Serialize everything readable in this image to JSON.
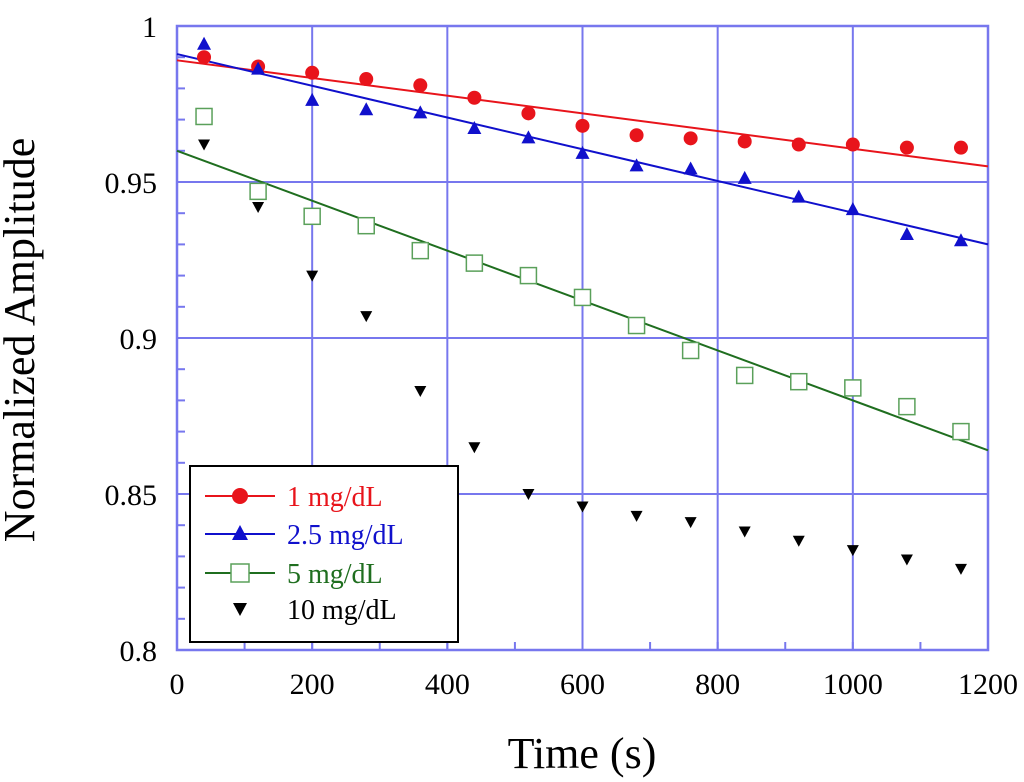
{
  "chart_data": {
    "type": "scatter",
    "title": "",
    "xlabel": "Time (s)",
    "ylabel": "Normalized Amplitude",
    "xlim": [
      0,
      1200
    ],
    "ylim": [
      0.8,
      1.0
    ],
    "grid": true,
    "legend_position": "bottom-left",
    "x_ticks": [
      {
        "value": 0,
        "label": "0"
      },
      {
        "value": 200,
        "label": "200"
      },
      {
        "value": 400,
        "label": "400"
      },
      {
        "value": 600,
        "label": "600"
      },
      {
        "value": 800,
        "label": "800"
      },
      {
        "value": 1000,
        "label": "1000"
      },
      {
        "value": 1200,
        "label": "1200"
      }
    ],
    "y_ticks": [
      {
        "value": 0.8,
        "label": "0.8"
      },
      {
        "value": 0.85,
        "label": "0.85"
      },
      {
        "value": 0.9,
        "label": "0.9"
      },
      {
        "value": 0.95,
        "label": "0.95"
      },
      {
        "value": 1.0,
        "label": "1"
      }
    ],
    "x": [
      40,
      120,
      200,
      280,
      360,
      440,
      520,
      600,
      680,
      760,
      840,
      920,
      1000,
      1080,
      1160
    ],
    "series": [
      {
        "name": "1 mg/dL",
        "label": "1 mg/dL",
        "color": "#e8141b",
        "marker": "circle",
        "filled": true,
        "values": [
          0.99,
          0.987,
          0.985,
          0.983,
          0.981,
          0.977,
          0.972,
          0.968,
          0.965,
          0.964,
          0.963,
          0.962,
          0.962,
          0.961,
          0.961
        ],
        "fit": {
          "x": [
            0,
            1200
          ],
          "y": [
            0.989,
            0.955
          ]
        }
      },
      {
        "name": "2.5 mg/dL",
        "label": "2.5 mg/dL",
        "color": "#1010cc",
        "marker": "triangle-up",
        "filled": true,
        "values": [
          0.994,
          0.986,
          0.976,
          0.973,
          0.972,
          0.967,
          0.964,
          0.959,
          0.955,
          0.954,
          0.951,
          0.945,
          0.941,
          0.933,
          0.931
        ],
        "fit": {
          "x": [
            0,
            1200
          ],
          "y": [
            0.991,
            0.93
          ]
        }
      },
      {
        "name": "5 mg/dL",
        "label": "5 mg/dL",
        "color": "#1f6e1f",
        "marker_color": "#5aa05a",
        "marker": "square",
        "filled": false,
        "values": [
          0.971,
          0.947,
          0.939,
          0.936,
          0.928,
          0.924,
          0.92,
          0.913,
          0.904,
          0.896,
          0.888,
          0.886,
          0.884,
          0.878,
          0.87
        ],
        "fit": {
          "x": [
            0,
            1200
          ],
          "y": [
            0.96,
            0.864
          ]
        }
      },
      {
        "name": "10 mg/dL",
        "label": "10 mg/dL",
        "color": "#000000",
        "marker": "triangle-down",
        "filled": true,
        "values": [
          0.962,
          0.942,
          0.92,
          0.907,
          0.883,
          0.865,
          0.85,
          0.846,
          0.843,
          0.841,
          0.838,
          0.835,
          0.832,
          0.829,
          0.826
        ],
        "fit": null
      }
    ]
  }
}
